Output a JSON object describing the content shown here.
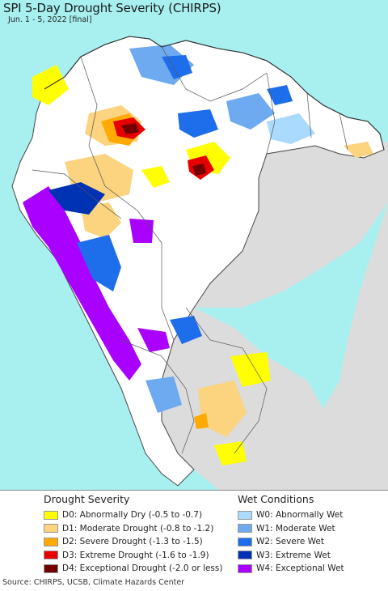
{
  "map": {
    "title": "SPI 5-Day Drought Severity (CHIRPS)",
    "subtitle": "Jun. 1 - 5, 2022 [final]",
    "colors": {
      "ocean": "#a8f0f0",
      "land_outside": "#dcdcdc",
      "land_normal": "#ffffff",
      "border": "#555555"
    }
  },
  "legend": {
    "drought": {
      "heading": "Drought Severity",
      "items": [
        {
          "label": "D0: Abnormally Dry (-0.5 to -0.7)",
          "color": "#ffff00"
        },
        {
          "label": "D1: Moderate Drought (-0.8 to -1.2)",
          "color": "#fcd37f"
        },
        {
          "label": "D2: Severe Drought (-1.3 to -1.5)",
          "color": "#ffaa00"
        },
        {
          "label": "D3: Extreme Drought (-1.6 to -1.9)",
          "color": "#e60000"
        },
        {
          "label": "D4: Exceptional Drought (-2.0 or less)",
          "color": "#730000"
        }
      ]
    },
    "wet": {
      "heading": "Wet Conditions",
      "items": [
        {
          "label": "W0: Abnormally Wet",
          "color": "#aadbff"
        },
        {
          "label": "W1: Moderate Wet",
          "color": "#6eaaf0"
        },
        {
          "label": "W2: Severe Wet",
          "color": "#1e6eeb"
        },
        {
          "label": "W3: Extreme Wet",
          "color": "#0032b4"
        },
        {
          "label": "W4: Exceptional Wet",
          "color": "#aa00ff"
        }
      ]
    }
  },
  "footer": {
    "source": "Source: CHIRPS, UCSB, Climate Hazards Center"
  }
}
